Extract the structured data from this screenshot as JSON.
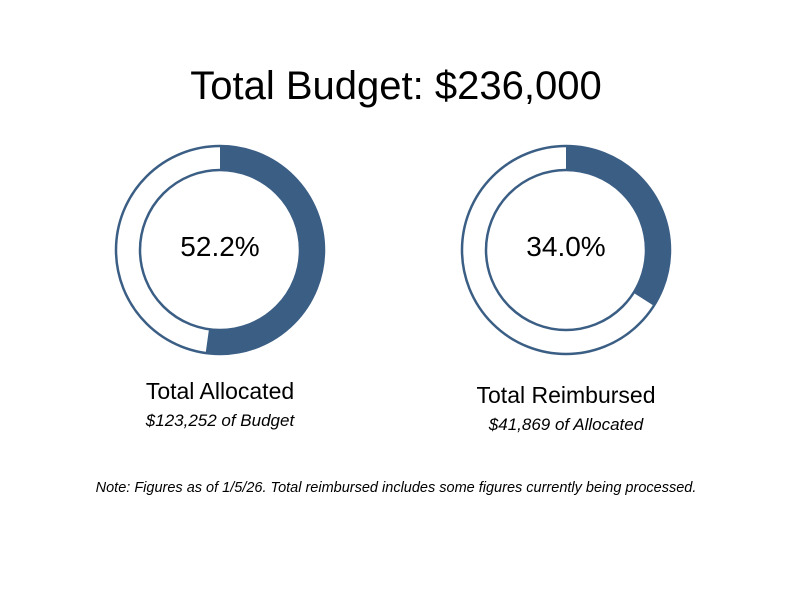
{
  "title": "Total Budget: $236,000",
  "colors": {
    "fill": "#3b5e85",
    "outline": "#3b5e85",
    "background": "#ffffff"
  },
  "chart_data": [
    {
      "type": "pie",
      "variant": "donut",
      "value_pct": 52.2,
      "value_label": "52.2%",
      "title": "Total Allocated",
      "subtitle": "$123,252 of Budget"
    },
    {
      "type": "pie",
      "variant": "donut",
      "value_pct": 34.0,
      "value_label": "34.0%",
      "title": "Total Reimbursed",
      "subtitle": "$41,869 of Allocated"
    }
  ],
  "note": "Note: Figures as of 1/5/26. Total reimbursed includes some figures currently being processed."
}
